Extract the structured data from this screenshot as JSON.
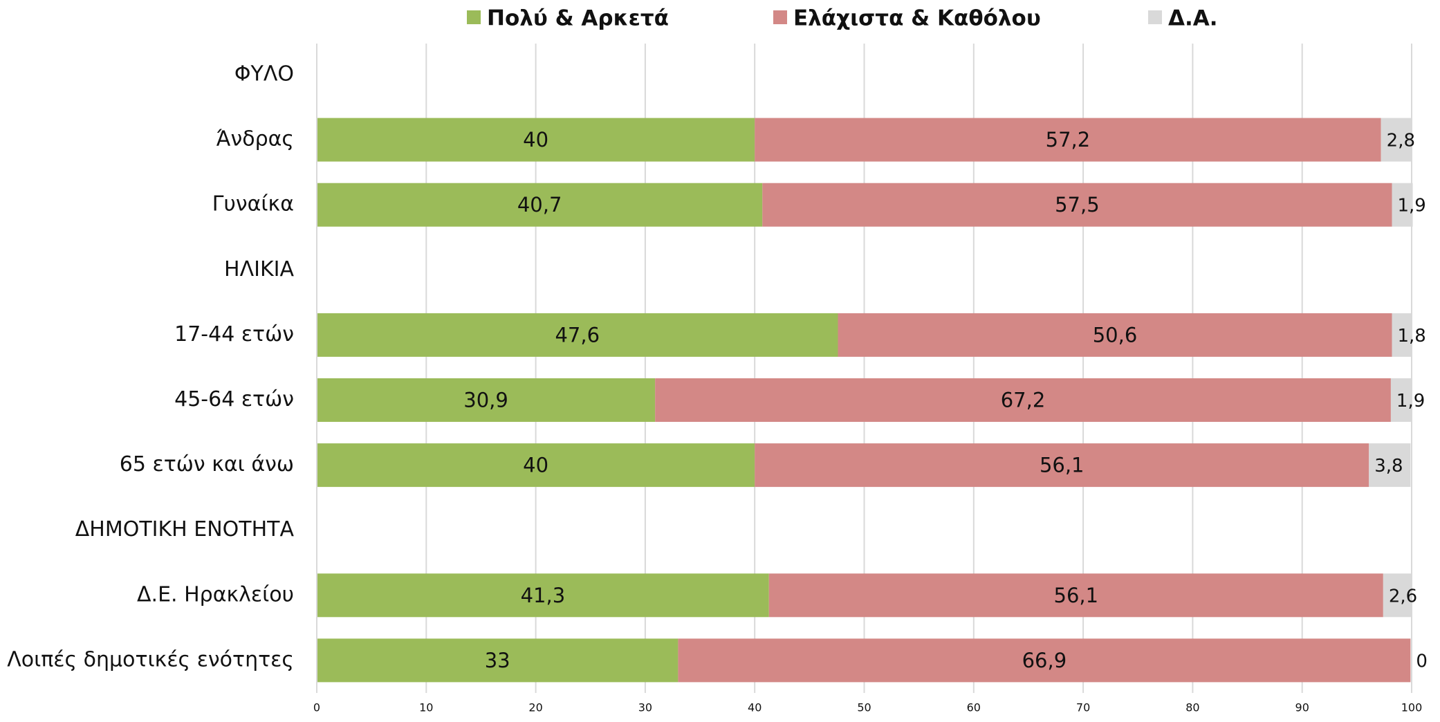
{
  "chart_data": {
    "type": "bar",
    "orientation": "horizontal",
    "stacked": true,
    "categories": [
      "ΦΥΛΟ",
      "Άνδρας",
      "Γυναίκα",
      "ΗΛΙΚΙΑ",
      "17-44 ετών",
      "45-64 ετών",
      "65 ετών και άνω",
      "ΔΗΜΟΤΙΚΗ ΕΝΟΤΗΤΑ",
      "Δ.Ε. Ηρακλείου",
      "Λοιπές δημοτικές ενότητες"
    ],
    "series": [
      {
        "name": "Πολύ & Αρκετά",
        "color": "#9bbb59",
        "values": [
          null,
          40,
          40.7,
          null,
          47.6,
          30.9,
          40,
          null,
          41.3,
          33
        ],
        "value_labels": [
          null,
          "40",
          "40,7",
          null,
          "47,6",
          "30,9",
          "40",
          null,
          "41,3",
          "33"
        ]
      },
      {
        "name": "Ελάχιστα & Καθόλου",
        "color": "#d38886",
        "values": [
          null,
          57.2,
          57.5,
          null,
          50.6,
          67.2,
          56.1,
          null,
          56.1,
          66.9
        ],
        "value_labels": [
          null,
          "57,2",
          "57,5",
          null,
          "50,6",
          "67,2",
          "56,1",
          null,
          "56,1",
          "66,9"
        ]
      },
      {
        "name": "Δ.Α.",
        "color": "#d9d9d9",
        "values": [
          null,
          2.8,
          1.9,
          null,
          1.8,
          1.9,
          3.8,
          null,
          2.6,
          0
        ],
        "value_labels": [
          null,
          "2,8",
          "1,9",
          null,
          "1,8",
          "1,9",
          "3,8",
          null,
          "2,6",
          "0"
        ]
      }
    ],
    "xlim": [
      0,
      100
    ],
    "xticks": [
      0,
      10,
      20,
      30,
      40,
      50,
      60,
      70,
      80,
      90,
      100
    ],
    "grid": true,
    "legend": "top"
  }
}
